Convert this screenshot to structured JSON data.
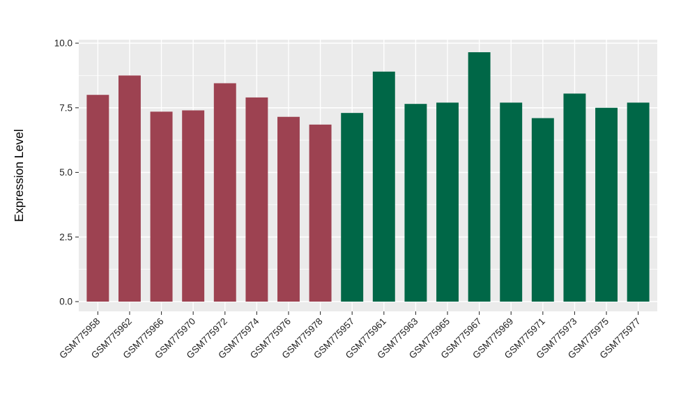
{
  "chart_data": {
    "type": "bar",
    "title": "",
    "xlabel": "",
    "ylabel": "Expression Level",
    "ylim": [
      0,
      10
    ],
    "yticks": [
      0,
      2.5,
      5,
      7.5,
      10
    ],
    "ytick_labels": [
      "0.0",
      "2.5",
      "5.0",
      "7.5",
      "10.0"
    ],
    "yticks_minor": [
      1.25,
      3.75,
      6.25,
      8.75
    ],
    "grid": "on",
    "legend": "none",
    "panel_background": "#EBEBEB",
    "gridline_color": "#FFFFFF",
    "categories": [
      "GSM775958",
      "GSM775962",
      "GSM775966",
      "GSM775970",
      "GSM775972",
      "GSM775974",
      "GSM775976",
      "GSM775978",
      "GSM775957",
      "GSM775961",
      "GSM775963",
      "GSM775965",
      "GSM775967",
      "GSM775969",
      "GSM775971",
      "GSM775973",
      "GSM775975",
      "GSM775977"
    ],
    "values": [
      8.0,
      8.75,
      7.35,
      7.4,
      8.45,
      7.9,
      7.15,
      6.85,
      7.3,
      8.9,
      7.65,
      7.7,
      9.65,
      7.7,
      7.1,
      8.05,
      7.5,
      7.7
    ],
    "colors": [
      "#9D4251",
      "#9D4251",
      "#9D4251",
      "#9D4251",
      "#9D4251",
      "#9D4251",
      "#9D4251",
      "#9D4251",
      "#006747",
      "#006747",
      "#006747",
      "#006747",
      "#006747",
      "#006747",
      "#006747",
      "#006747",
      "#006747",
      "#006747"
    ],
    "color_groups": [
      {
        "name": "left-group",
        "color": "#9D4251",
        "bar_count": 8
      },
      {
        "name": "right-group",
        "color": "#006747",
        "bar_count": 10
      }
    ]
  }
}
